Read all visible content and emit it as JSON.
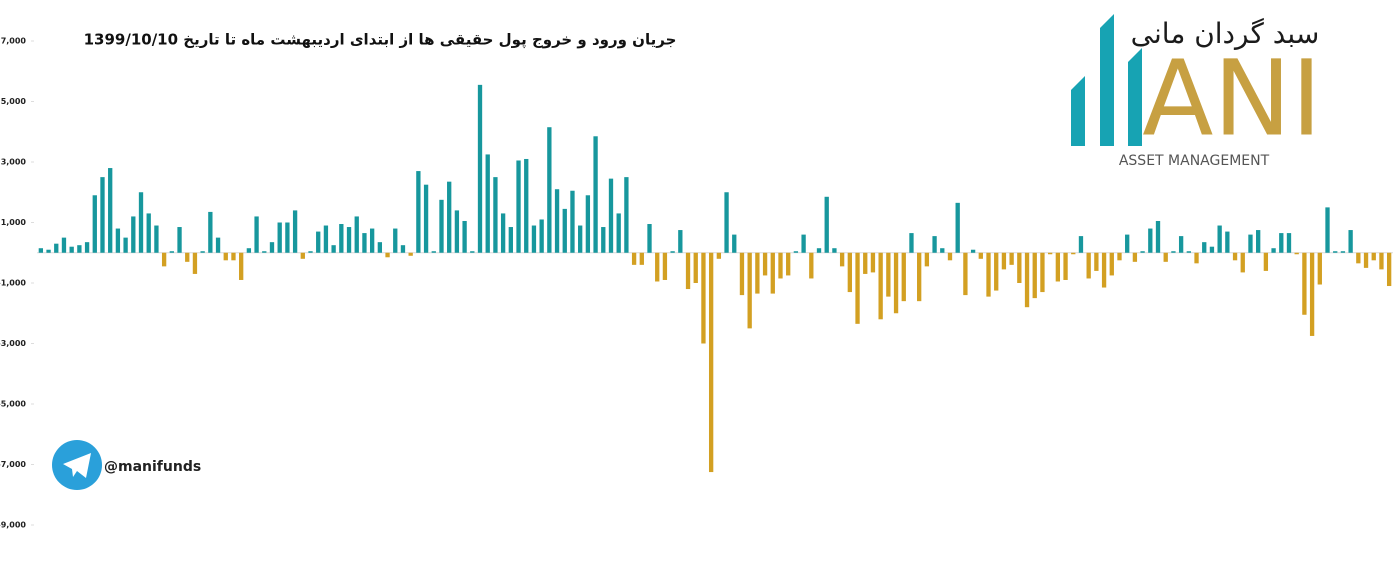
{
  "chart_data": {
    "type": "bar",
    "title": "جریان ورود و خروج پول حقیقی ها از ابتدای اردیبهشت ماه تا تاریخ 1399/10/10",
    "watermark": "@manifunds",
    "logo": {
      "name": "سبد گردان مانی",
      "letters": "ANI",
      "tagline": "ASSET MANAGEMENT"
    },
    "colors": {
      "positive": "#17979d",
      "negative": "#d3a022"
    },
    "ylim": [
      -9000,
      7000
    ],
    "yticks": [
      {
        "value": 7000,
        "label": "7,000"
      },
      {
        "value": 5000,
        "label": "5,000"
      },
      {
        "value": 3000,
        "label": "3,000"
      },
      {
        "value": 1000,
        "label": "1,000"
      },
      {
        "value": -1000,
        "label": "-1,000"
      },
      {
        "value": -3000,
        "label": "-3,000"
      },
      {
        "value": -5000,
        "label": "-5,000"
      },
      {
        "value": -7000,
        "label": "-7,000"
      },
      {
        "value": -9000,
        "label": "-9,000"
      }
    ],
    "values": [
      150,
      100,
      300,
      500,
      200,
      250,
      350,
      1900,
      2500,
      2800,
      800,
      500,
      1200,
      2000,
      1300,
      900,
      -450,
      50,
      850,
      -300,
      -700,
      50,
      1350,
      500,
      -250,
      -250,
      -900,
      150,
      1200,
      50,
      350,
      1000,
      1000,
      1400,
      -200,
      50,
      700,
      900,
      250,
      950,
      850,
      1200,
      650,
      800,
      350,
      -150,
      800,
      250,
      -100,
      2700,
      2250,
      50,
      1750,
      2350,
      1400,
      1050,
      50,
      5550,
      3250,
      2500,
      1300,
      850,
      3050,
      3100,
      900,
      1100,
      4150,
      2100,
      1450,
      2050,
      900,
      1900,
      3850,
      850,
      2450,
      1300,
      2500,
      -400,
      -400,
      950,
      -950,
      -900,
      50,
      750,
      -1200,
      -1000,
      -3000,
      -7250,
      -200,
      2000,
      600,
      -1400,
      -2500,
      -1350,
      -750,
      -1350,
      -850,
      -750,
      50,
      600,
      -850,
      150,
      1850,
      150,
      -450,
      -1300,
      -2350,
      -700,
      -650,
      -2200,
      -1450,
      -2000,
      -1600,
      650,
      -1600,
      -450,
      550,
      150,
      -250,
      1650,
      -1400,
      100,
      -200,
      -1450,
      -1250,
      -550,
      -400,
      -1000,
      -1800,
      -1500,
      -1300,
      -50,
      -950,
      -900,
      -50,
      550,
      -850,
      -600,
      -1150,
      -750,
      -250,
      600,
      -300,
      50,
      800,
      1050,
      -300,
      50,
      550,
      50,
      -350,
      350,
      200,
      900,
      700,
      -250,
      -650,
      600,
      750,
      -600,
      150,
      650,
      650,
      -50,
      -2050,
      -2750,
      -1050,
      1500,
      50,
      50,
      750,
      -350,
      -500,
      -250,
      -550,
      -1100
    ]
  }
}
